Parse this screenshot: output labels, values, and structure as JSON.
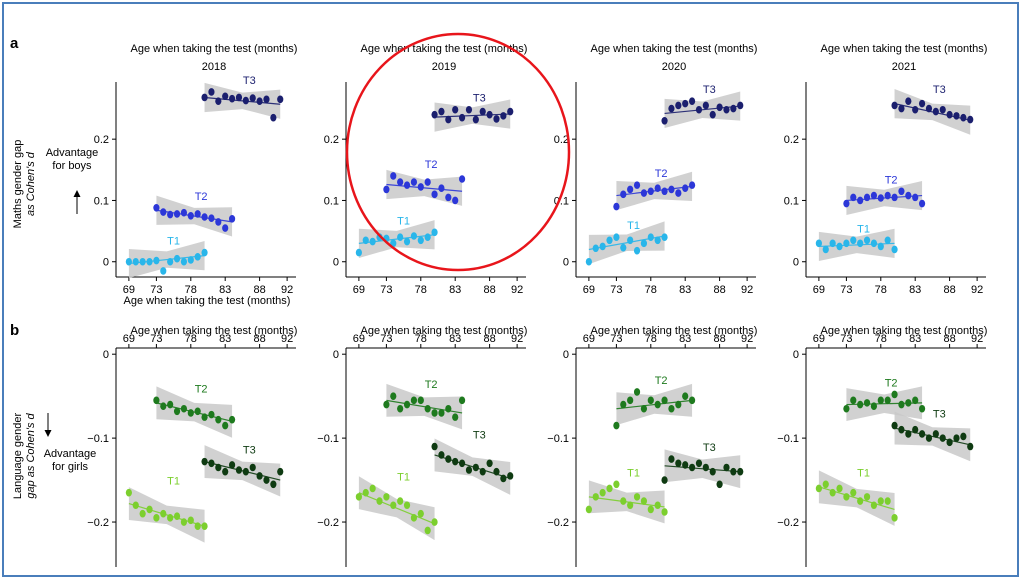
{
  "figure": {
    "panel_a_label": "a",
    "panel_b_label": "b",
    "panel_a_ylabel_line1": "Maths gender gap",
    "panel_a_ylabel_line2": "as Cohen's d",
    "panel_b_ylabel_line1": "Language gender",
    "panel_b_ylabel_line2": "gap as Cohen's d",
    "panel_a_advantage_line1": "Advantage",
    "panel_a_advantage_line2": "for boys",
    "panel_b_advantage_line1": "Advantage",
    "panel_b_advantage_line2": "for girls",
    "x_axis_title": "Age when taking the test (months)",
    "years": [
      "2018",
      "2019",
      "2020",
      "2021"
    ],
    "colors": {
      "T1_math": "#29b6ea",
      "T2_math": "#2c37d8",
      "T3_math": "#1b1f6e",
      "T1_lang": "#7ccf2e",
      "T2_lang": "#1e7a1e",
      "T3_lang": "#0f3b12",
      "band": "#c9c9c9",
      "highlight_circle": "#e8151b"
    }
  },
  "chart_data": [
    {
      "panel": "a",
      "year": "2018",
      "type": "scatter",
      "xlabel": "Age when taking the test (months)",
      "ylabel": "Maths gender gap as Cohen's d",
      "xticks": [
        69,
        73,
        78,
        83,
        88,
        92
      ],
      "yticks": [
        0,
        0.1,
        0.2
      ],
      "ytick_labels": [
        "0",
        "0.1",
        "0.2"
      ],
      "xlim": [
        68,
        93
      ],
      "ylim": [
        -0.02,
        0.29
      ],
      "series": [
        {
          "name": "T1",
          "x": [
            69,
            70,
            71,
            72,
            73,
            74,
            75,
            76,
            77,
            78,
            79,
            80
          ],
          "y": [
            0.0,
            0.0,
            0.0,
            0.0,
            0.002,
            -0.015,
            0.0,
            0.005,
            0.0,
            0.003,
            0.008,
            0.015
          ],
          "fit": [
            -0.003,
            0.01
          ]
        },
        {
          "name": "T2",
          "x": [
            73,
            74,
            75,
            76,
            77,
            78,
            79,
            80,
            81,
            82,
            83,
            84
          ],
          "y": [
            0.088,
            0.081,
            0.077,
            0.078,
            0.08,
            0.075,
            0.078,
            0.073,
            0.071,
            0.065,
            0.055,
            0.07
          ],
          "fit": [
            0.084,
            0.065
          ]
        },
        {
          "name": "T3",
          "x": [
            80,
            81,
            82,
            83,
            84,
            85,
            86,
            87,
            88,
            89,
            90,
            91
          ],
          "y": [
            0.268,
            0.277,
            0.262,
            0.27,
            0.266,
            0.268,
            0.263,
            0.267,
            0.262,
            0.265,
            0.235,
            0.265
          ],
          "fit": [
            0.268,
            0.257
          ]
        }
      ]
    },
    {
      "panel": "a",
      "year": "2019",
      "type": "scatter",
      "xlabel": "Age when taking the test (months)",
      "ylabel": "Maths gender gap as Cohen's d",
      "xticks": [
        69,
        73,
        78,
        83,
        88,
        92
      ],
      "yticks": [
        0,
        0.1,
        0.2
      ],
      "ytick_labels": [
        "0",
        "0.1",
        "0.2"
      ],
      "xlim": [
        68,
        93
      ],
      "ylim": [
        -0.02,
        0.29
      ],
      "series": [
        {
          "name": "T1",
          "x": [
            69,
            70,
            71,
            72,
            73,
            74,
            75,
            76,
            77,
            78,
            79,
            80
          ],
          "y": [
            0.015,
            0.035,
            0.033,
            0.04,
            0.038,
            0.03,
            0.04,
            0.033,
            0.042,
            0.035,
            0.04,
            0.048
          ],
          "fit": [
            0.03,
            0.044
          ]
        },
        {
          "name": "T2",
          "x": [
            73,
            74,
            75,
            76,
            77,
            78,
            79,
            80,
            81,
            82,
            83,
            84
          ],
          "y": [
            0.118,
            0.14,
            0.13,
            0.125,
            0.13,
            0.122,
            0.13,
            0.11,
            0.12,
            0.105,
            0.1,
            0.135
          ],
          "fit": [
            0.126,
            0.115
          ]
        },
        {
          "name": "T3",
          "x": [
            80,
            81,
            82,
            83,
            84,
            85,
            86,
            87,
            88,
            89,
            90,
            91
          ],
          "y": [
            0.24,
            0.245,
            0.232,
            0.248,
            0.235,
            0.248,
            0.232,
            0.245,
            0.24,
            0.233,
            0.238,
            0.245
          ],
          "fit": [
            0.236,
            0.241
          ]
        }
      ]
    },
    {
      "panel": "a",
      "year": "2020",
      "type": "scatter",
      "xlabel": "Age when taking the test (months)",
      "ylabel": "Maths gender gap as Cohen's d",
      "xticks": [
        69,
        73,
        78,
        83,
        88,
        92
      ],
      "yticks": [
        0,
        0.1,
        0.2
      ],
      "ytick_labels": [
        "0",
        "0.1",
        "0.2"
      ],
      "xlim": [
        68,
        93
      ],
      "ylim": [
        -0.02,
        0.29
      ],
      "series": [
        {
          "name": "T1",
          "x": [
            69,
            70,
            71,
            72,
            73,
            74,
            75,
            76,
            77,
            78,
            79,
            80
          ],
          "y": [
            0.0,
            0.022,
            0.025,
            0.035,
            0.04,
            0.023,
            0.035,
            0.018,
            0.03,
            0.04,
            0.035,
            0.04
          ],
          "fit": [
            0.02,
            0.042
          ]
        },
        {
          "name": "T2",
          "x": [
            73,
            74,
            75,
            76,
            77,
            78,
            79,
            80,
            81,
            82,
            83,
            84
          ],
          "y": [
            0.09,
            0.11,
            0.118,
            0.125,
            0.112,
            0.115,
            0.12,
            0.115,
            0.118,
            0.112,
            0.12,
            0.125
          ],
          "fit": [
            0.108,
            0.123
          ]
        },
        {
          "name": "T3",
          "x": [
            80,
            81,
            82,
            83,
            84,
            85,
            86,
            87,
            88,
            89,
            90,
            91
          ],
          "y": [
            0.23,
            0.25,
            0.255,
            0.258,
            0.262,
            0.248,
            0.255,
            0.24,
            0.252,
            0.248,
            0.25,
            0.255
          ],
          "fit": [
            0.242,
            0.254
          ]
        }
      ]
    },
    {
      "panel": "a",
      "year": "2021",
      "type": "scatter",
      "xlabel": "Age when taking the test (months)",
      "ylabel": "Maths gender gap as Cohen's d",
      "xticks": [
        69,
        73,
        78,
        83,
        88,
        92
      ],
      "yticks": [
        0,
        0.1,
        0.2
      ],
      "ytick_labels": [
        "0",
        "0.1",
        "0.2"
      ],
      "xlim": [
        68,
        93
      ],
      "ylim": [
        -0.02,
        0.29
      ],
      "series": [
        {
          "name": "T1",
          "x": [
            69,
            70,
            71,
            72,
            73,
            74,
            75,
            76,
            77,
            78,
            79,
            80
          ],
          "y": [
            0.03,
            0.02,
            0.03,
            0.025,
            0.03,
            0.035,
            0.03,
            0.035,
            0.03,
            0.025,
            0.035,
            0.02
          ],
          "fit": [
            0.025,
            0.03
          ]
        },
        {
          "name": "T2",
          "x": [
            73,
            74,
            75,
            76,
            77,
            78,
            79,
            80,
            81,
            82,
            83,
            84
          ],
          "y": [
            0.095,
            0.105,
            0.1,
            0.105,
            0.108,
            0.104,
            0.108,
            0.105,
            0.115,
            0.108,
            0.105,
            0.095
          ],
          "fit": [
            0.1,
            0.108
          ]
        },
        {
          "name": "T3",
          "x": [
            80,
            81,
            82,
            83,
            84,
            85,
            86,
            87,
            88,
            89,
            90,
            91
          ],
          "y": [
            0.255,
            0.25,
            0.262,
            0.248,
            0.258,
            0.25,
            0.245,
            0.248,
            0.24,
            0.238,
            0.235,
            0.232
          ],
          "fit": [
            0.258,
            0.231
          ]
        }
      ]
    },
    {
      "panel": "b",
      "year": "2018",
      "type": "scatter",
      "xlabel": "Age when taking the test (months)",
      "ylabel": "Language gender gap as Cohen's d",
      "xticks": [
        69,
        73,
        78,
        83,
        88,
        92
      ],
      "yticks": [
        0,
        -0.1,
        -0.2
      ],
      "ytick_labels": [
        "0",
        "−0.1",
        "−0.2"
      ],
      "xlim": [
        68,
        93
      ],
      "ylim": [
        -0.25,
        0.005
      ],
      "series": [
        {
          "name": "T1",
          "x": [
            69,
            70,
            71,
            72,
            73,
            74,
            75,
            76,
            77,
            78,
            79,
            80
          ],
          "y": [
            -0.165,
            -0.18,
            -0.19,
            -0.185,
            -0.195,
            -0.19,
            -0.195,
            -0.193,
            -0.2,
            -0.198,
            -0.205,
            -0.205
          ],
          "fit": [
            -0.178,
            -0.205
          ]
        },
        {
          "name": "T2",
          "x": [
            73,
            74,
            75,
            76,
            77,
            78,
            79,
            80,
            81,
            82,
            83,
            84
          ],
          "y": [
            -0.055,
            -0.062,
            -0.06,
            -0.068,
            -0.065,
            -0.07,
            -0.068,
            -0.075,
            -0.072,
            -0.078,
            -0.085,
            -0.078
          ],
          "fit": [
            -0.058,
            -0.08
          ]
        },
        {
          "name": "T3",
          "x": [
            80,
            81,
            82,
            83,
            84,
            85,
            86,
            87,
            88,
            89,
            90,
            91
          ],
          "y": [
            -0.128,
            -0.13,
            -0.135,
            -0.14,
            -0.132,
            -0.138,
            -0.14,
            -0.135,
            -0.145,
            -0.15,
            -0.155,
            -0.14
          ],
          "fit": [
            -0.128,
            -0.15
          ]
        }
      ]
    },
    {
      "panel": "b",
      "year": "2019",
      "type": "scatter",
      "xlabel": "Age when taking the test (months)",
      "ylabel": "Language gender gap as Cohen's d",
      "xticks": [
        69,
        73,
        78,
        83,
        88,
        92
      ],
      "yticks": [
        0,
        -0.1,
        -0.2
      ],
      "ytick_labels": [
        "0",
        "−0.1",
        "−0.2"
      ],
      "xlim": [
        68,
        93
      ],
      "ylim": [
        -0.25,
        0.005
      ],
      "series": [
        {
          "name": "T1",
          "x": [
            69,
            70,
            71,
            72,
            73,
            74,
            75,
            76,
            77,
            78,
            79,
            80
          ],
          "y": [
            -0.17,
            -0.165,
            -0.16,
            -0.175,
            -0.17,
            -0.18,
            -0.175,
            -0.18,
            -0.195,
            -0.19,
            -0.21,
            -0.2
          ],
          "fit": [
            -0.165,
            -0.202
          ]
        },
        {
          "name": "T2",
          "x": [
            73,
            74,
            75,
            76,
            77,
            78,
            79,
            80,
            81,
            82,
            83,
            84
          ],
          "y": [
            -0.06,
            -0.05,
            -0.065,
            -0.06,
            -0.055,
            -0.055,
            -0.065,
            -0.07,
            -0.07,
            -0.065,
            -0.075,
            -0.055
          ],
          "fit": [
            -0.055,
            -0.07
          ]
        },
        {
          "name": "T3",
          "x": [
            80,
            81,
            82,
            83,
            84,
            85,
            86,
            87,
            88,
            89,
            90,
            91
          ],
          "y": [
            -0.11,
            -0.12,
            -0.125,
            -0.128,
            -0.13,
            -0.138,
            -0.135,
            -0.14,
            -0.13,
            -0.14,
            -0.148,
            -0.145
          ],
          "fit": [
            -0.12,
            -0.148
          ]
        }
      ]
    },
    {
      "panel": "b",
      "year": "2020",
      "type": "scatter",
      "xlabel": "Age when taking the test (months)",
      "ylabel": "Language gender gap as Cohen's d",
      "xticks": [
        69,
        73,
        78,
        83,
        88,
        92
      ],
      "yticks": [
        0,
        -0.1,
        -0.2
      ],
      "ytick_labels": [
        "0",
        "−0.1",
        "−0.2"
      ],
      "xlim": [
        68,
        93
      ],
      "ylim": [
        -0.25,
        0.005
      ],
      "series": [
        {
          "name": "T1",
          "x": [
            69,
            70,
            71,
            72,
            73,
            74,
            75,
            76,
            77,
            78,
            79,
            80
          ],
          "y": [
            -0.185,
            -0.17,
            -0.165,
            -0.16,
            -0.155,
            -0.175,
            -0.18,
            -0.17,
            -0.175,
            -0.185,
            -0.18,
            -0.188
          ],
          "fit": [
            -0.17,
            -0.182
          ]
        },
        {
          "name": "T2",
          "x": [
            73,
            74,
            75,
            76,
            77,
            78,
            79,
            80,
            81,
            82,
            83,
            84
          ],
          "y": [
            -0.085,
            -0.06,
            -0.055,
            -0.045,
            -0.065,
            -0.055,
            -0.06,
            -0.055,
            -0.065,
            -0.06,
            -0.05,
            -0.055
          ],
          "fit": [
            -0.065,
            -0.055
          ]
        },
        {
          "name": "T3",
          "x": [
            80,
            81,
            82,
            83,
            84,
            85,
            86,
            87,
            88,
            89,
            90,
            91
          ],
          "y": [
            -0.15,
            -0.125,
            -0.13,
            -0.132,
            -0.135,
            -0.13,
            -0.135,
            -0.14,
            -0.155,
            -0.135,
            -0.14,
            -0.14
          ],
          "fit": [
            -0.133,
            -0.14
          ]
        }
      ]
    },
    {
      "panel": "b",
      "year": "2021",
      "type": "scatter",
      "xlabel": "Age when taking the test (months)",
      "ylabel": "Language gender gap as Cohen's d",
      "xticks": [
        69,
        73,
        78,
        83,
        88,
        92
      ],
      "yticks": [
        0,
        -0.1,
        -0.2
      ],
      "ytick_labels": [
        "0",
        "−0.1",
        "−0.2"
      ],
      "xlim": [
        68,
        93
      ],
      "ylim": [
        -0.25,
        0.005
      ],
      "series": [
        {
          "name": "T1",
          "x": [
            69,
            70,
            71,
            72,
            73,
            74,
            75,
            76,
            77,
            78,
            79,
            80
          ],
          "y": [
            -0.16,
            -0.155,
            -0.165,
            -0.16,
            -0.17,
            -0.165,
            -0.175,
            -0.17,
            -0.18,
            -0.175,
            -0.175,
            -0.195
          ],
          "fit": [
            -0.158,
            -0.185
          ]
        },
        {
          "name": "T2",
          "x": [
            73,
            74,
            75,
            76,
            77,
            78,
            79,
            80,
            81,
            82,
            83,
            84
          ],
          "y": [
            -0.065,
            -0.055,
            -0.06,
            -0.058,
            -0.062,
            -0.055,
            -0.055,
            -0.048,
            -0.06,
            -0.058,
            -0.055,
            -0.065
          ],
          "fit": [
            -0.06,
            -0.058
          ]
        },
        {
          "name": "T3",
          "x": [
            80,
            81,
            82,
            83,
            84,
            85,
            86,
            87,
            88,
            89,
            90,
            91
          ],
          "y": [
            -0.085,
            -0.09,
            -0.095,
            -0.09,
            -0.095,
            -0.1,
            -0.095,
            -0.1,
            -0.105,
            -0.1,
            -0.098,
            -0.11
          ],
          "fit": [
            -0.088,
            -0.108
          ]
        }
      ]
    }
  ]
}
